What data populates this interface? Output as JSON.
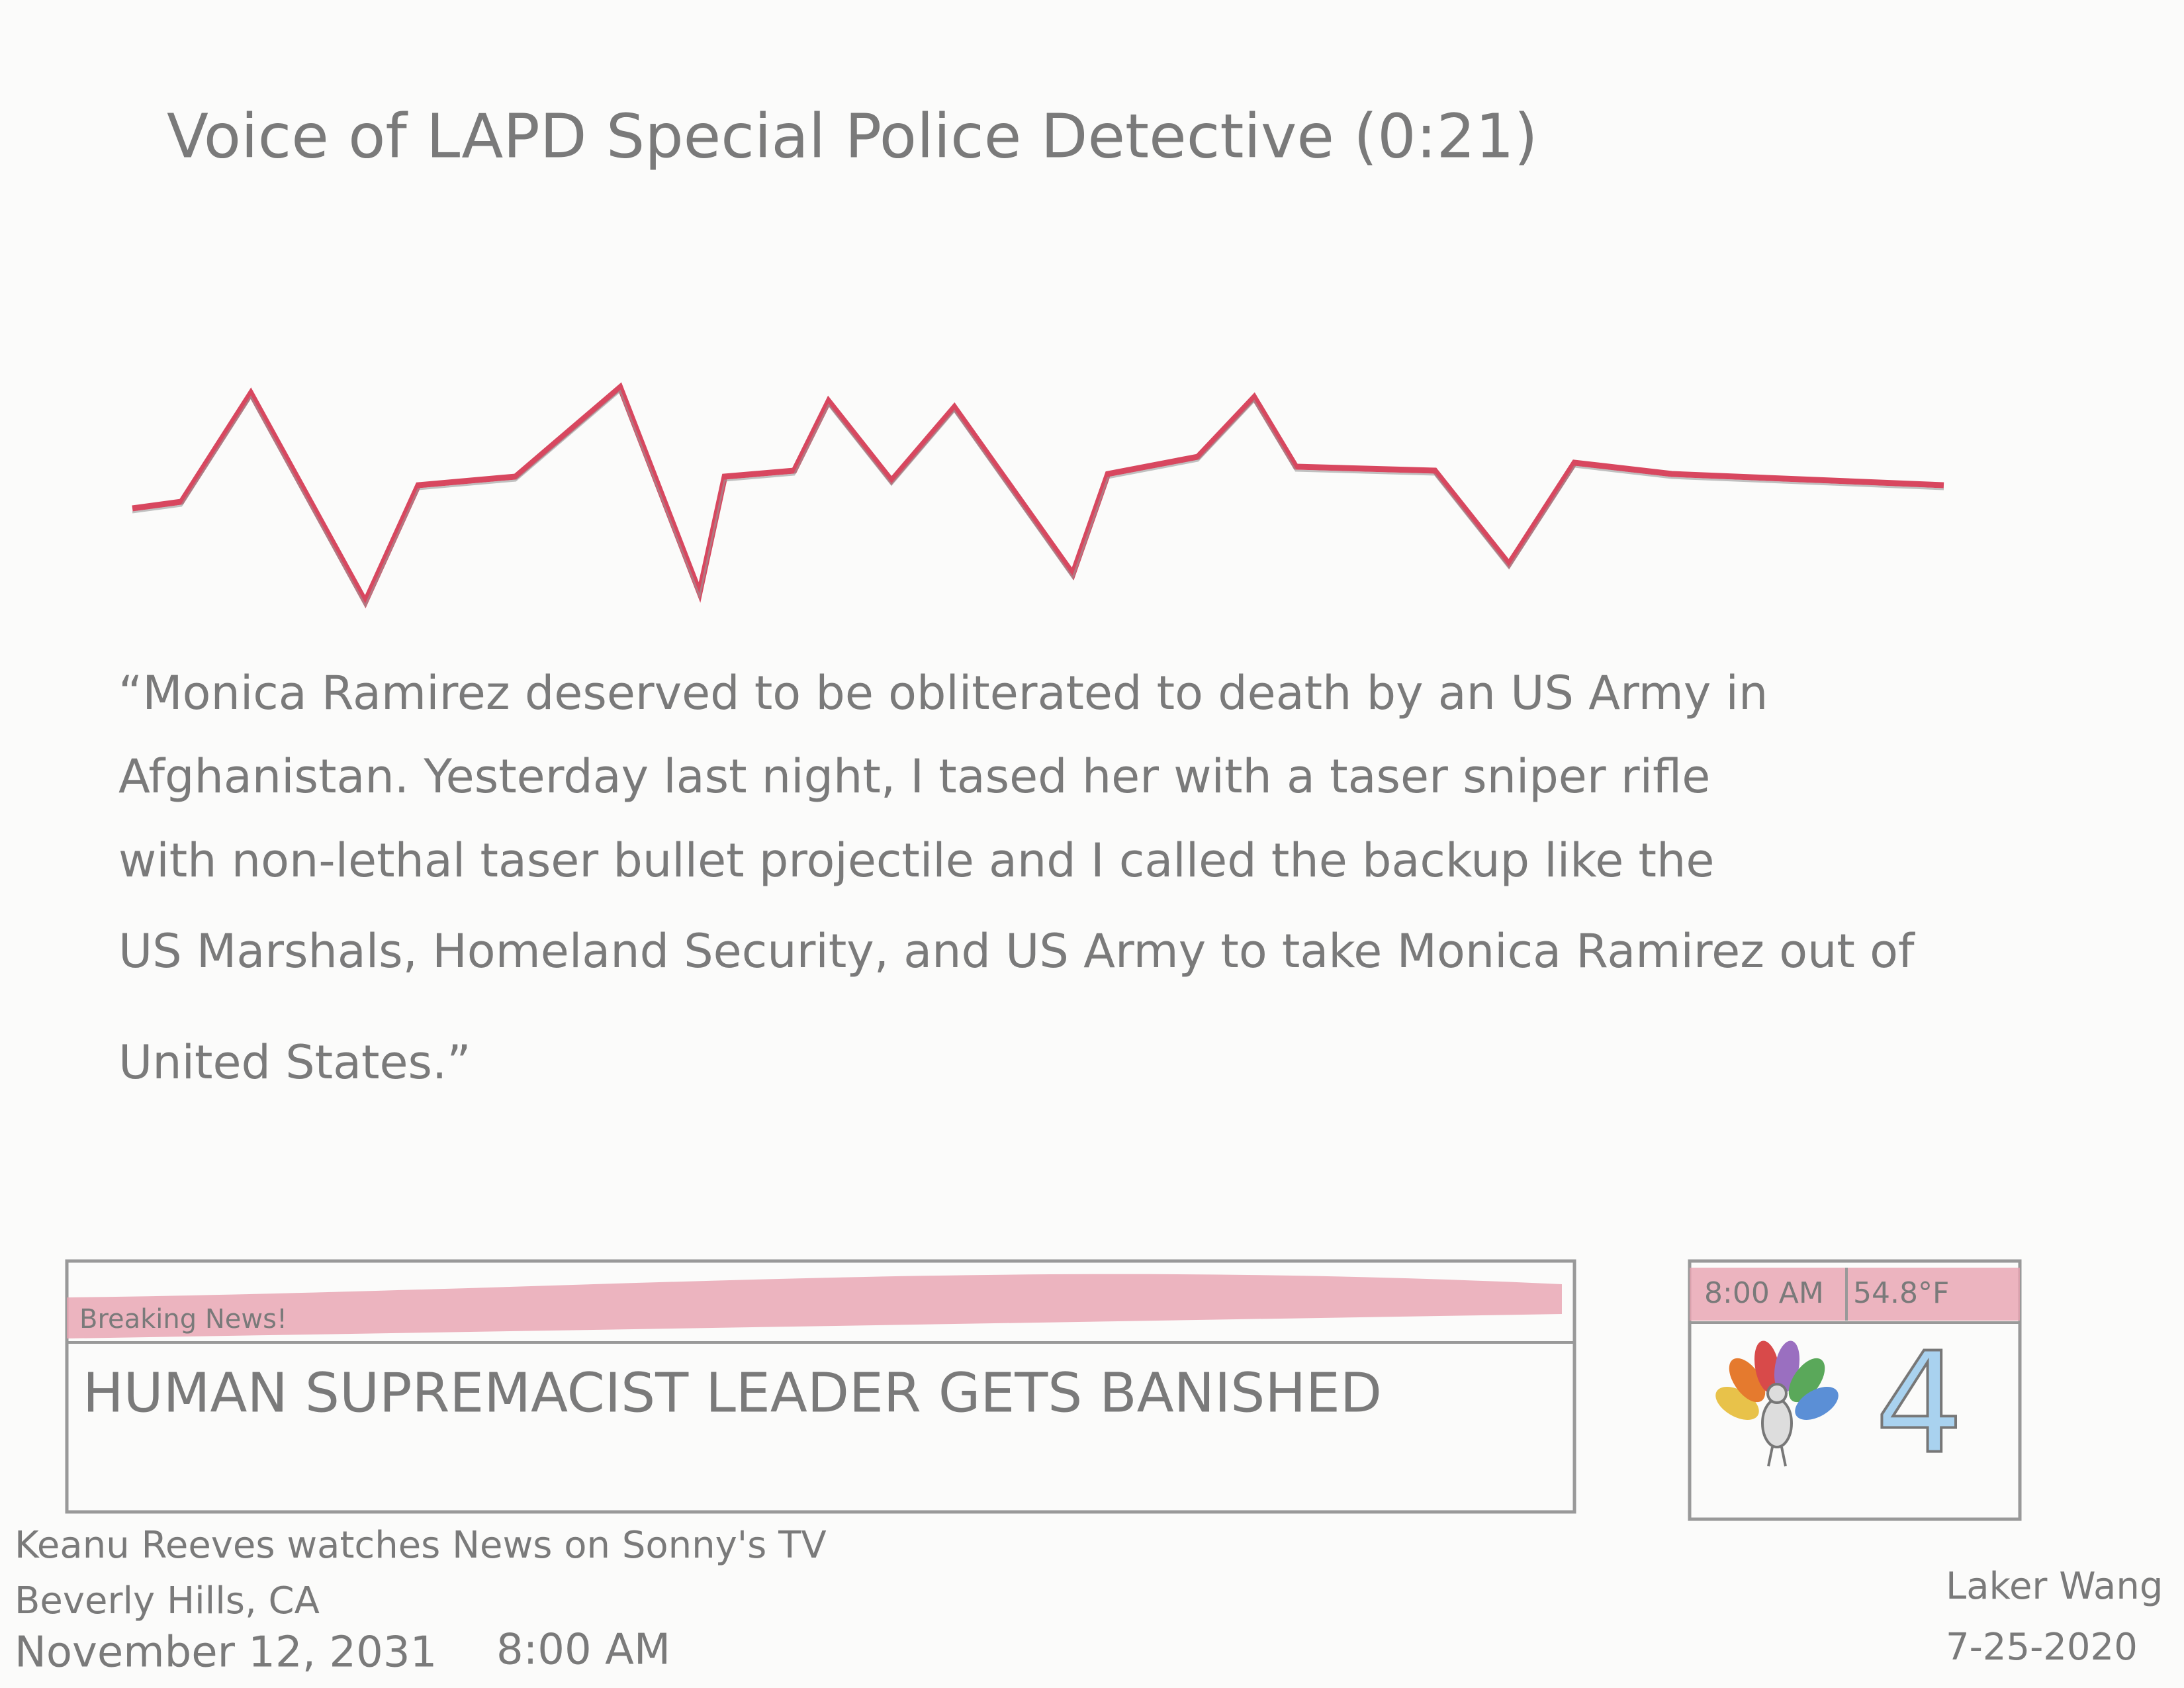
{
  "header": {
    "title": "Voice of LAPD Special Police Detective (0:21)"
  },
  "quote": {
    "lines": [
      "“Monica Ramirez deserved to be obliterated to death by an US Army in",
      "Afghanistan. Yesterday last night, I tased her with a taser sniper rifle",
      "with non-lethal taser bullet projectile and I called the backup like the",
      "US Marshals, Homeland Security, and US Army to take Monica Ramirez out of",
      "United States.”"
    ]
  },
  "ticker": {
    "label": "Breaking News!",
    "headline": "HUMAN SUPREMACIST LEADER GETS BANISHED"
  },
  "station": {
    "time": "8:00 AM",
    "temperature": "54.8°F",
    "channel": "4"
  },
  "caption": {
    "lines": [
      "Keanu Reeves watches News on Sonny's TV",
      "Beverly Hills, CA"
    ],
    "date": "November 12, 2031",
    "time": "8:00 AM"
  },
  "signature": {
    "name": "Laker Wang",
    "date": "7-25-2020"
  }
}
